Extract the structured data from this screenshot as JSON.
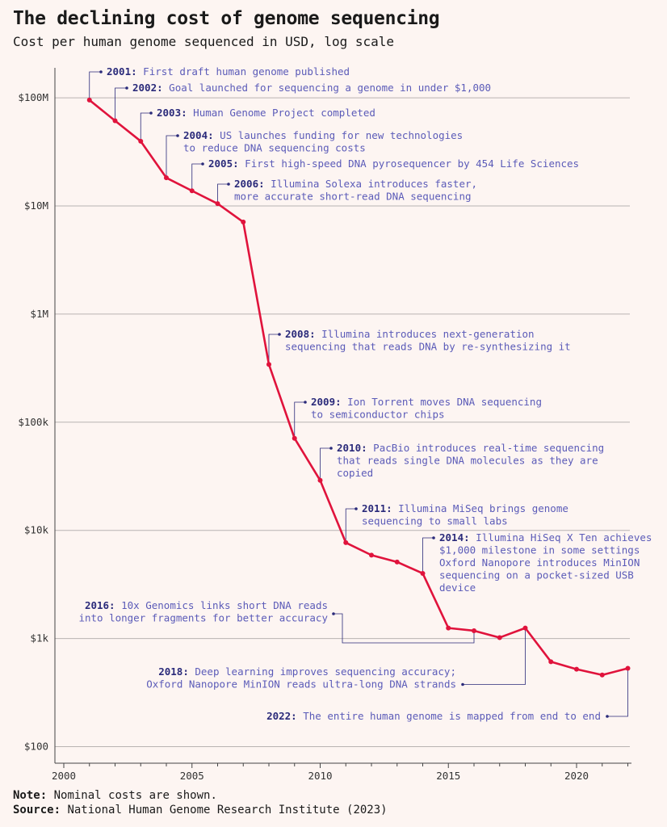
{
  "chart_data": {
    "type": "line",
    "title": "The declining cost of genome sequencing",
    "subtitle": "Cost per human genome sequenced in USD, log scale",
    "y_scale": "log",
    "ylim": [
      100,
      200000000
    ],
    "xlim": [
      2000,
      2022
    ],
    "y_ticks": [
      {
        "value": 100,
        "label": "$100"
      },
      {
        "value": 1000,
        "label": "$1k"
      },
      {
        "value": 10000,
        "label": "$10k"
      },
      {
        "value": 100000,
        "label": "$100k"
      },
      {
        "value": 1000000,
        "label": "$1M"
      },
      {
        "value": 10000000,
        "label": "$10M"
      },
      {
        "value": 100000000,
        "label": "$100M"
      }
    ],
    "x_ticks": [
      2000,
      2005,
      2010,
      2015,
      2020
    ],
    "line_color": "#e0133c",
    "series": [
      {
        "x": [
          2001,
          2002,
          2003,
          2004,
          2005,
          2006,
          2007,
          2008,
          2009,
          2010,
          2011,
          2012,
          2013,
          2014,
          2015,
          2016,
          2017,
          2018,
          2019,
          2020,
          2021,
          2022
        ],
        "values": [
          95300000,
          61400000,
          39700000,
          18200000,
          13800000,
          10500000,
          7100000,
          342500,
          71000,
          29000,
          7700,
          5900,
          5100,
          4000,
          1250,
          1180,
          1020,
          1250,
          610,
          520,
          460,
          530
        ]
      }
    ],
    "annotations": [
      {
        "year": "2001",
        "lines": [
          "First draft human genome published"
        ]
      },
      {
        "year": "2002",
        "lines": [
          "Goal launched for sequencing a genome in under $1,000"
        ]
      },
      {
        "year": "2003",
        "lines": [
          "Human Genome Project completed"
        ]
      },
      {
        "year": "2004",
        "lines": [
          "US launches funding for new technologies",
          "to reduce DNA sequencing costs"
        ]
      },
      {
        "year": "2005",
        "lines": [
          "First high-speed DNA pyrosequencer by 454 Life Sciences"
        ]
      },
      {
        "year": "2006",
        "lines": [
          "Illumina Solexa introduces faster,",
          "more accurate short-read DNA sequencing"
        ]
      },
      {
        "year": "2008",
        "lines": [
          "Illumina introduces next-generation",
          "sequencing that reads DNA by re-synthesizing it"
        ]
      },
      {
        "year": "2009",
        "lines": [
          "Ion Torrent moves DNA sequencing",
          "to semiconductor chips"
        ]
      },
      {
        "year": "2010",
        "lines": [
          "PacBio introduces real-time sequencing",
          "that reads single DNA molecules as they are",
          "copied"
        ]
      },
      {
        "year": "2011",
        "lines": [
          "Illumina MiSeq brings genome",
          "sequencing to small labs"
        ]
      },
      {
        "year": "2014",
        "lines": [
          "Illumina HiSeq X Ten achieves",
          "$1,000 milestone in some settings",
          "Oxford Nanopore introduces MinION",
          "sequencing on a pocket-sized USB",
          "device"
        ]
      },
      {
        "year": "2016",
        "lines": [
          "10x Genomics links short DNA reads",
          "into longer fragments for better accuracy"
        ]
      },
      {
        "year": "2018",
        "lines": [
          "Deep learning improves sequencing accuracy;",
          "Oxford Nanopore MinION reads ultra-long DNA strands"
        ]
      },
      {
        "year": "2022",
        "lines": [
          "The entire human genome is mapped from end to end"
        ]
      }
    ]
  },
  "footer": {
    "note_label": "Note:",
    "note_text": " Nominal costs are shown.",
    "source_label": "Source:",
    "source_text": " National Human Genome Research Institute (2023)"
  }
}
